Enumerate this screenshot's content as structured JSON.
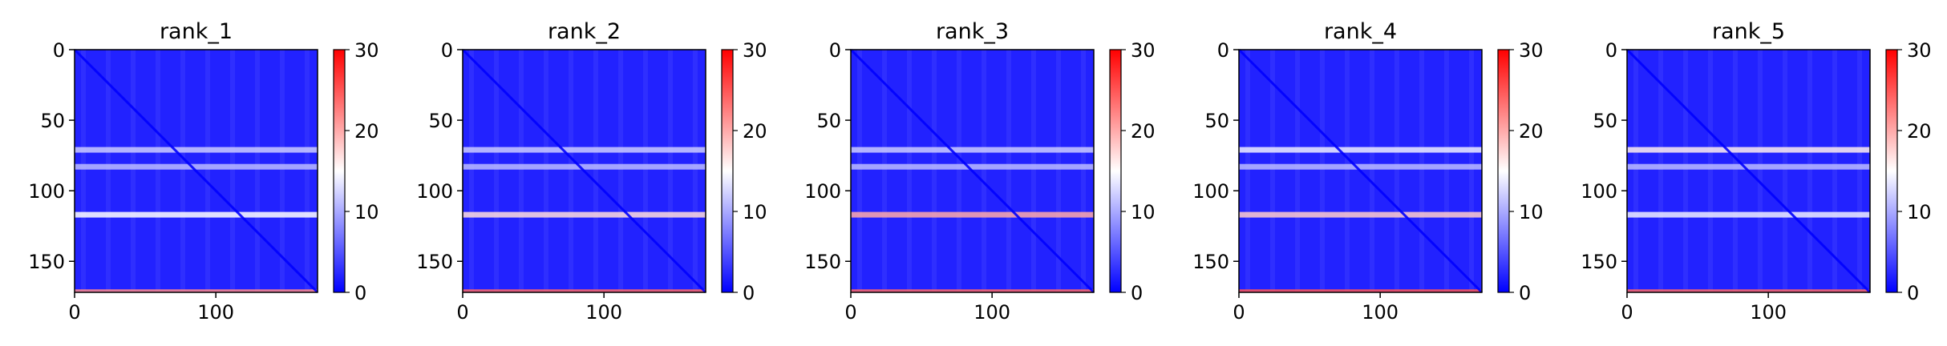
{
  "chart_data": [
    {
      "type": "heatmap",
      "title": "rank_1",
      "x_ticks": [
        "0",
        "100"
      ],
      "y_ticks": [
        "0",
        "50",
        "100",
        "150"
      ],
      "xlim": [
        0,
        172
      ],
      "ylim": [
        172,
        0
      ],
      "colorbar": {
        "ticks": [
          "0",
          "10",
          "20",
          "30"
        ],
        "range": [
          0,
          30
        ],
        "colormap": "bwr"
      },
      "features": [
        {
          "kind": "horizontal-band",
          "y": 71,
          "value": 12
        },
        {
          "kind": "horizontal-band",
          "y": 83,
          "value": 11
        },
        {
          "kind": "horizontal-band",
          "y": 117,
          "value": 15
        },
        {
          "kind": "horizontal-band",
          "y": 171,
          "value": 22
        },
        {
          "kind": "diagonal",
          "value": 0
        }
      ]
    },
    {
      "type": "heatmap",
      "title": "rank_2",
      "x_ticks": [
        "0",
        "100"
      ],
      "y_ticks": [
        "0",
        "50",
        "100",
        "150"
      ],
      "xlim": [
        0,
        172
      ],
      "ylim": [
        172,
        0
      ],
      "colorbar": {
        "ticks": [
          "0",
          "10",
          "20",
          "30"
        ],
        "range": [
          0,
          30
        ],
        "colormap": "bwr"
      },
      "features": [
        {
          "kind": "horizontal-band",
          "y": 71,
          "value": 12
        },
        {
          "kind": "horizontal-band",
          "y": 83,
          "value": 11
        },
        {
          "kind": "horizontal-band",
          "y": 117,
          "value": 17
        },
        {
          "kind": "horizontal-band",
          "y": 171,
          "value": 24
        },
        {
          "kind": "diagonal",
          "value": 0
        }
      ]
    },
    {
      "type": "heatmap",
      "title": "rank_3",
      "x_ticks": [
        "0",
        "100"
      ],
      "y_ticks": [
        "0",
        "50",
        "100",
        "150"
      ],
      "xlim": [
        0,
        172
      ],
      "ylim": [
        172,
        0
      ],
      "colorbar": {
        "ticks": [
          "0",
          "10",
          "20",
          "30"
        ],
        "range": [
          0,
          30
        ],
        "colormap": "bwr"
      },
      "features": [
        {
          "kind": "horizontal-band",
          "y": 71,
          "value": 12
        },
        {
          "kind": "horizontal-band",
          "y": 83,
          "value": 11
        },
        {
          "kind": "horizontal-band",
          "y": 117,
          "value": 20
        },
        {
          "kind": "horizontal-band",
          "y": 171,
          "value": 24
        },
        {
          "kind": "diagonal",
          "value": 0
        }
      ]
    },
    {
      "type": "heatmap",
      "title": "rank_4",
      "x_ticks": [
        "0",
        "100"
      ],
      "y_ticks": [
        "0",
        "50",
        "100",
        "150"
      ],
      "xlim": [
        0,
        172
      ],
      "ylim": [
        172,
        0
      ],
      "colorbar": {
        "ticks": [
          "0",
          "10",
          "20",
          "30"
        ],
        "range": [
          0,
          30
        ],
        "colormap": "bwr"
      },
      "features": [
        {
          "kind": "horizontal-band",
          "y": 71,
          "value": 14
        },
        {
          "kind": "horizontal-band",
          "y": 83,
          "value": 11
        },
        {
          "kind": "horizontal-band",
          "y": 117,
          "value": 18
        },
        {
          "kind": "horizontal-band",
          "y": 171,
          "value": 25
        },
        {
          "kind": "diagonal",
          "value": 0
        }
      ]
    },
    {
      "type": "heatmap",
      "title": "rank_5",
      "x_ticks": [
        "0",
        "100"
      ],
      "y_ticks": [
        "0",
        "50",
        "100",
        "150"
      ],
      "xlim": [
        0,
        172
      ],
      "ylim": [
        172,
        0
      ],
      "colorbar": {
        "ticks": [
          "0",
          "10",
          "20",
          "30"
        ],
        "range": [
          0,
          30
        ],
        "colormap": "bwr"
      },
      "features": [
        {
          "kind": "horizontal-band",
          "y": 71,
          "value": 16
        },
        {
          "kind": "horizontal-band",
          "y": 83,
          "value": 11
        },
        {
          "kind": "horizontal-band",
          "y": 117,
          "value": 14
        },
        {
          "kind": "horizontal-band",
          "y": 171,
          "value": 24
        },
        {
          "kind": "diagonal",
          "value": 0
        }
      ]
    }
  ],
  "colors": {
    "cmap_low": "#0000ff",
    "cmap_mid": "#ffffff",
    "cmap_high": "#ff0000",
    "background_value_level": 2
  }
}
